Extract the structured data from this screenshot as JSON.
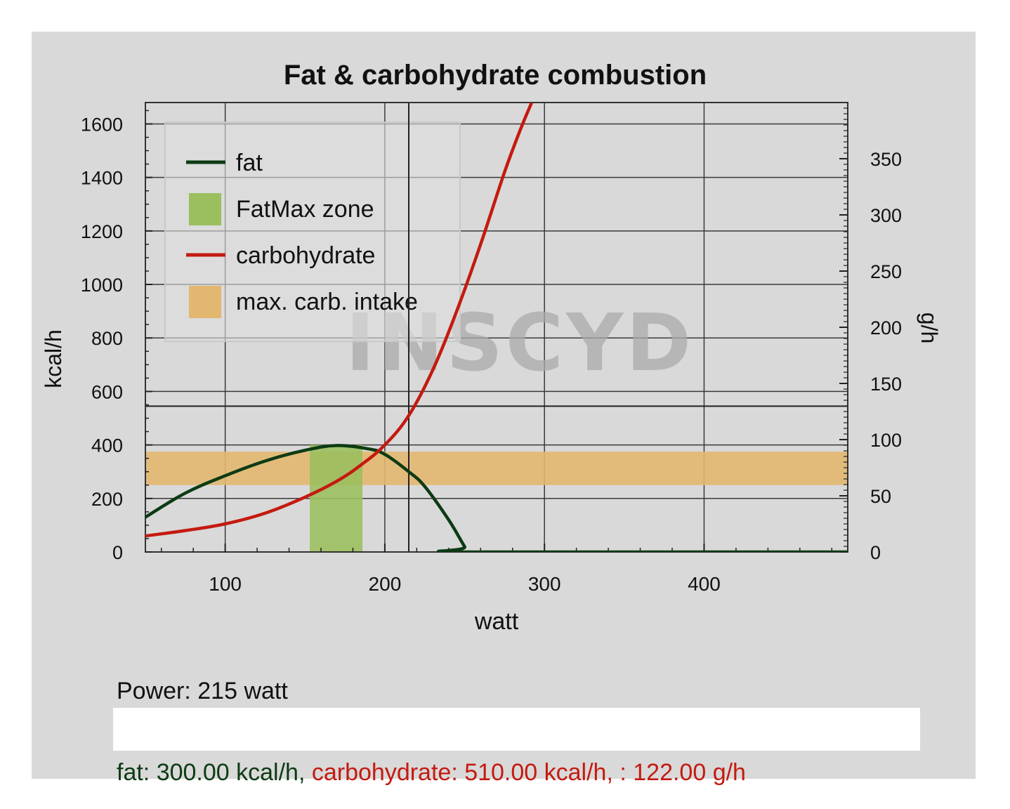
{
  "colors": {
    "background": "#ffffff",
    "panel": "#d9d9d9",
    "fat": "#0d3b13",
    "carbohydrate": "#c41a10",
    "fatmax_zone": "#9bbf5e",
    "carb_intake": "#e2b770",
    "watermark_gray": "#a9a9a9",
    "watermark_red": "#e79a9a"
  },
  "watermark": "INSCYD",
  "readout": {
    "power": "Power: 215 watt",
    "fat": "fat: 300.00 kcal/h,",
    "carbohydrate": "carbohydrate: 510.00 kcal/h, : 122.00 g/h"
  },
  "chart_data": {
    "type": "line",
    "title": "Fat & carbohydrate combustion",
    "xlabel": "watt",
    "ylabel": "kcal/h",
    "y2label": "g/h",
    "xlim": [
      50,
      490
    ],
    "ylim": [
      0,
      1680
    ],
    "y2lim": [
      0,
      400
    ],
    "xticks": [
      100,
      200,
      300,
      400
    ],
    "yticks": [
      0,
      200,
      400,
      600,
      800,
      1000,
      1200,
      1400,
      1600
    ],
    "y2ticks": [
      0,
      50,
      100,
      150,
      200,
      250,
      300,
      350
    ],
    "grid": true,
    "legend": "top-left",
    "legend_labels": {
      "fat": "fat",
      "fatmax": "FatMax zone",
      "carbohydrate": "carbohydrate",
      "intake": "max. carb. intake"
    },
    "series": [
      {
        "name": "fat",
        "x": [
          50,
          75,
          100,
          125,
          150,
          170,
          190,
          200,
          215,
          225,
          240,
          250,
          253,
          490
        ],
        "y": [
          130,
          220,
          285,
          340,
          380,
          398,
          385,
          365,
          300,
          245,
          120,
          20,
          0,
          0
        ]
      },
      {
        "name": "carbohydrate",
        "x": [
          50,
          75,
          100,
          125,
          150,
          170,
          185,
          200,
          215,
          230,
          245,
          260,
          275,
          285,
          292
        ],
        "y": [
          60,
          80,
          105,
          145,
          205,
          265,
          325,
          400,
          510,
          680,
          900,
          1150,
          1420,
          1580,
          1680
        ]
      }
    ],
    "fatmax_zone": {
      "x": [
        153,
        186
      ],
      "y": [
        0,
        400
      ]
    },
    "carb_intake_band": {
      "y": [
        250,
        375
      ]
    },
    "markers": {
      "vertical_line_x": 215,
      "horizontal_line_y": 545
    }
  }
}
